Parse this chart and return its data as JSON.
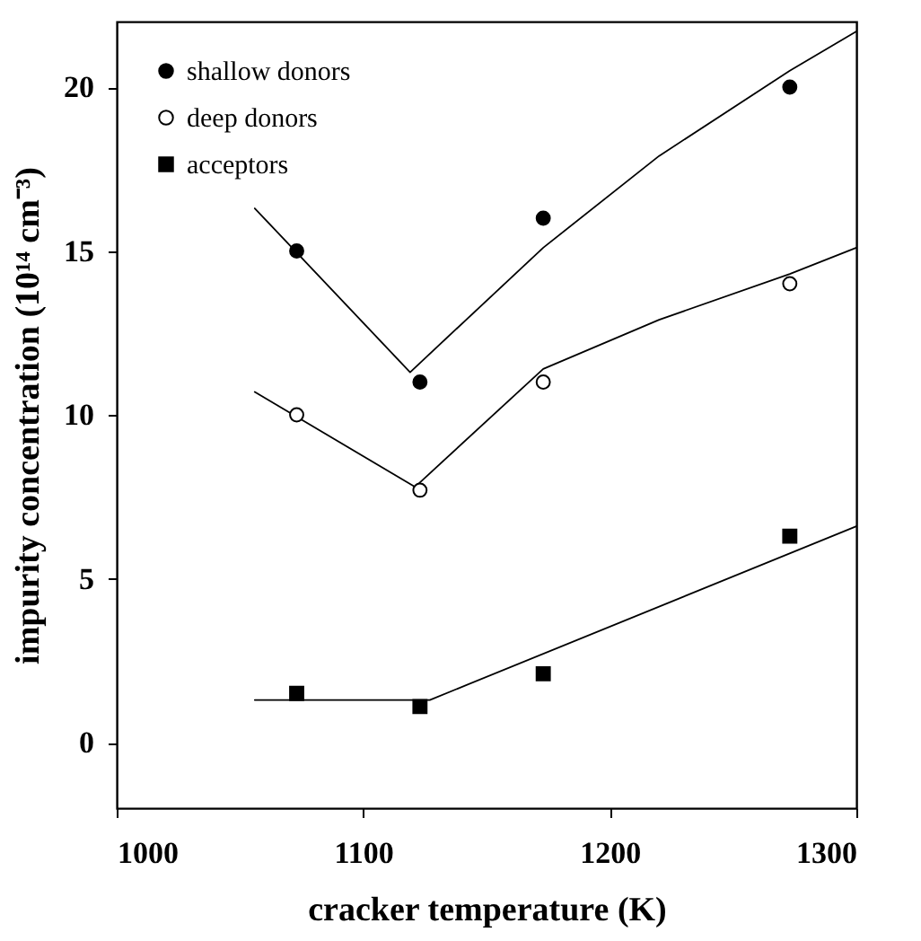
{
  "chart_data": {
    "type": "scatter",
    "xlabel": "cracker temperature (K)",
    "ylabel": "impurity concentration (10¹⁴ cm⁻³)",
    "xlim": [
      1000,
      1300
    ],
    "ylim": [
      -2,
      22
    ],
    "xticks": [
      1000,
      1100,
      1200,
      1300
    ],
    "yticks": [
      0,
      5,
      10,
      15,
      20
    ],
    "grid": false,
    "legend": "top left",
    "series": [
      {
        "name": "shallow donors",
        "marker": "circle",
        "color": "#000000",
        "x": [
          1073,
          1123,
          1173,
          1273
        ],
        "values": [
          15,
          11,
          16,
          20
        ]
      },
      {
        "name": "deep donors",
        "marker": "circle",
        "color": "#ffffff",
        "x": [
          1073,
          1123,
          1173,
          1273
        ],
        "values": [
          10,
          7.7,
          11,
          14
        ]
      },
      {
        "name": "acceptors",
        "marker": "square",
        "color": "#000000",
        "x": [
          1073,
          1123,
          1173,
          1273
        ],
        "values": [
          1.5,
          1.1,
          2.1,
          6.3
        ]
      },
      {
        "type": "line",
        "color": "#000000",
        "x": [
          1056,
          1119,
          1173,
          1220,
          1273,
          1300
        ],
        "values": [
          16.3,
          11.3,
          15.1,
          17.9,
          20.5,
          21.7
        ]
      },
      {
        "type": "line",
        "color": "#000000",
        "x": [
          1056,
          1121,
          1173,
          1220,
          1273,
          1300
        ],
        "values": [
          10.7,
          7.8,
          11.4,
          12.9,
          14.3,
          15.1
        ]
      },
      {
        "type": "line",
        "color": "#000000",
        "x": [
          1056,
          1127,
          1300
        ],
        "values": [
          1.3,
          1.3,
          6.6
        ]
      }
    ]
  }
}
